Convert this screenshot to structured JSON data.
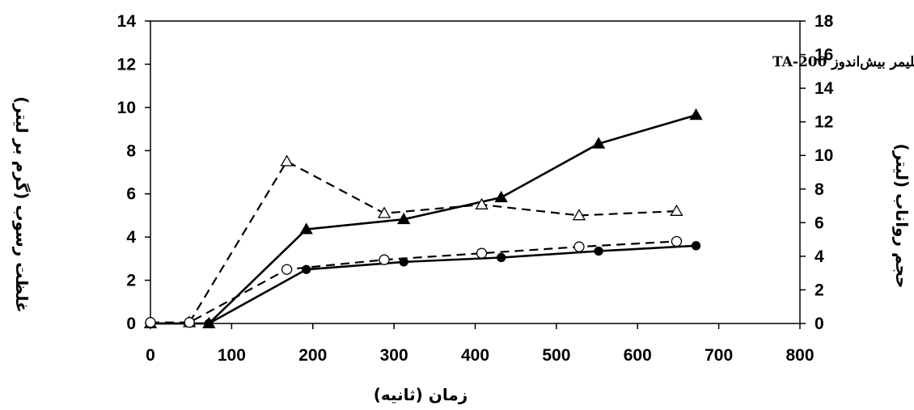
{
  "chart_data": {
    "type": "line",
    "annotation": "پلیمر بیش‌اندوز TA-200",
    "xlabel": "زمان (ثانیه)",
    "ylabel_left": "غلظت رسوب (گرم بر لیتر)",
    "ylabel_right": "حجم رواناب (لیتر)",
    "xlim": [
      0,
      800
    ],
    "xticks": [
      0,
      100,
      200,
      300,
      400,
      500,
      600,
      700,
      800
    ],
    "ylim_left": [
      0,
      14
    ],
    "yticks_left": [
      0,
      2,
      4,
      6,
      8,
      10,
      12,
      14
    ],
    "ylim_right": [
      0,
      18
    ],
    "yticks_right": [
      0,
      2,
      4,
      6,
      8,
      10,
      12,
      14,
      16,
      18
    ],
    "grid": false,
    "series": [
      {
        "axis": "right",
        "marker": "filled-triangle",
        "line": "solid",
        "x": [
          0,
          72,
          192,
          312,
          432,
          552,
          672
        ],
        "y": [
          0,
          0,
          5.6,
          6.2,
          7.5,
          10.7,
          12.4
        ]
      },
      {
        "axis": "left",
        "marker": "open-triangle",
        "line": "dashed",
        "x": [
          48,
          168,
          288,
          408,
          528,
          648
        ],
        "y": [
          0.05,
          7.5,
          5.1,
          5.5,
          5.0,
          5.2
        ]
      },
      {
        "axis": "left",
        "marker": "filled-circle",
        "line": "solid",
        "x": [
          0,
          72,
          192,
          312,
          432,
          552,
          672
        ],
        "y": [
          0,
          0,
          2.5,
          2.85,
          3.05,
          3.35,
          3.6
        ]
      },
      {
        "axis": "left",
        "marker": "open-circle",
        "line": "dashed",
        "x": [
          0,
          48,
          168,
          288,
          408,
          528,
          648
        ],
        "y": [
          0.05,
          0.05,
          2.5,
          2.95,
          3.25,
          3.55,
          3.8
        ]
      }
    ]
  }
}
